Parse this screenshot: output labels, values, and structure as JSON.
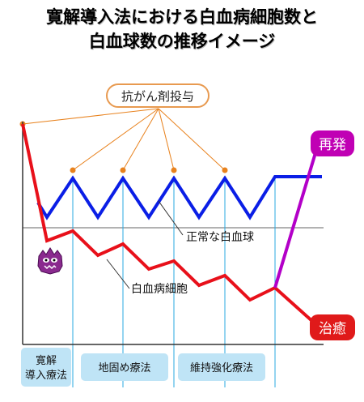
{
  "title": {
    "line1": "寛解導入法における白血病細胞数と",
    "line2": "白血球数の推移イメージ"
  },
  "labels": {
    "chemo": "抗がん剤投与",
    "normal_wbc": "正常な白血球",
    "leukemia_cells": "白血病細胞",
    "relapse": "再発",
    "cure": "治癒"
  },
  "phases": [
    {
      "line1": "寛解",
      "line2": "導入療法"
    },
    {
      "line1": "地固め療法"
    },
    {
      "line1": "維持強化療法"
    }
  ],
  "colors": {
    "leukemia": "#e8101a",
    "normal": "#0a1ee6",
    "relapse": "#b300c8",
    "chemo_line": "#e8821e",
    "guide": "#2aa8e0",
    "phase_box": "#bfe4f6",
    "relapse_badge": "#c000b4",
    "cure_badge": "#e01a1a",
    "chemo_border": "#e89a50"
  },
  "icons": {
    "leukemia_cell": "leukemia-monster-icon"
  }
}
